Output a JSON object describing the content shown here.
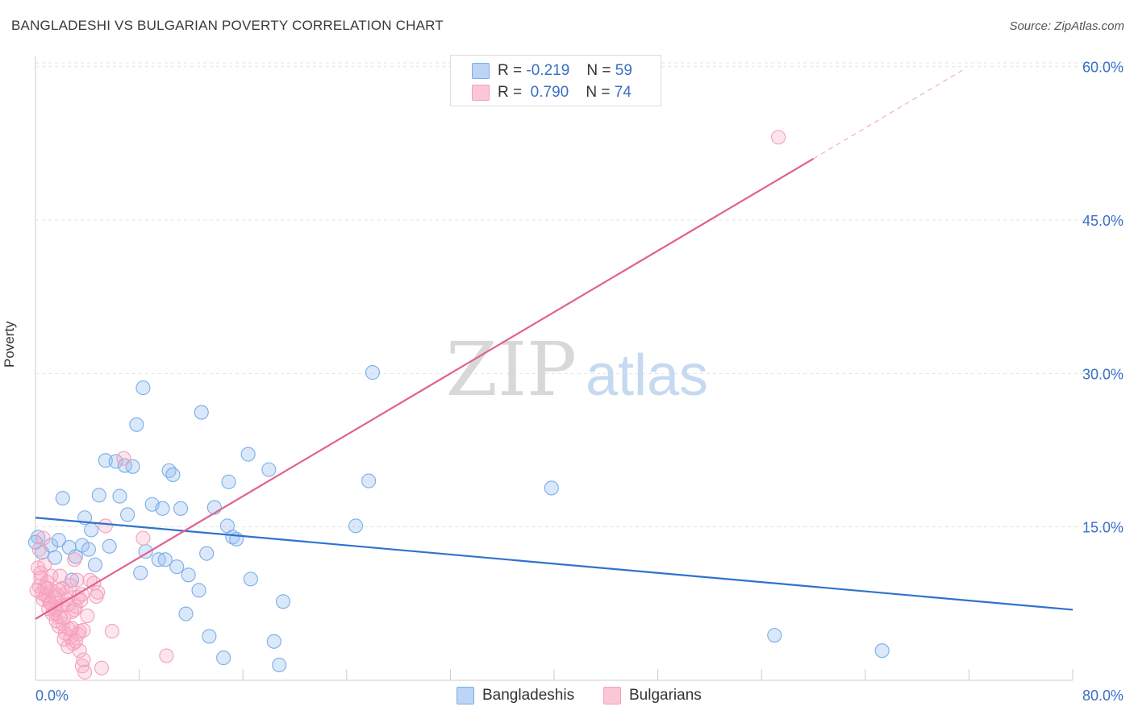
{
  "title": "BANGLADESHI VS BULGARIAN POVERTY CORRELATION CHART",
  "source": "Source: ZipAtlas.com",
  "watermark": {
    "zip": "ZIP",
    "atlas": "atlas"
  },
  "legend": {
    "rows": [
      {
        "r_label": "R =",
        "r_value": "-0.219",
        "n_label": "N =",
        "n_value": "59"
      },
      {
        "r_label": "R =",
        "r_value": "0.790",
        "n_label": "N =",
        "n_value": "74"
      }
    ]
  },
  "bottom_legend": [
    "Bangladeshis",
    "Bulgarians"
  ],
  "chart_data": {
    "type": "scatter",
    "title": "BANGLADESHI VS BULGARIAN POVERTY CORRELATION CHART",
    "xlabel": "",
    "ylabel": "Poverty",
    "xlim": [
      0,
      80
    ],
    "ylim": [
      0,
      61
    ],
    "x_tick_labels": [
      "0.0%",
      "80.0%"
    ],
    "y_tick_labels": [
      "15.0%",
      "30.0%",
      "45.0%",
      "60.0%"
    ],
    "y_ticks": [
      15,
      30,
      45,
      60
    ],
    "grid": true,
    "legend_position": "top-center",
    "series": [
      {
        "name": "Bangladeshis",
        "color": "#7aaee8",
        "line_color": "#2f72cf",
        "r": -0.219,
        "n": 59,
        "trend": {
          "x0": 0,
          "y0": 15.9,
          "x1": 80,
          "y1": 6.9
        },
        "points": [
          [
            0.2,
            14.0
          ],
          [
            0.5,
            12.5
          ],
          [
            1.2,
            13.2
          ],
          [
            1.5,
            12.0
          ],
          [
            1.8,
            13.7
          ],
          [
            2.1,
            17.8
          ],
          [
            2.6,
            13.0
          ],
          [
            2.8,
            9.8
          ],
          [
            3.1,
            12.1
          ],
          [
            3.6,
            13.2
          ],
          [
            3.8,
            15.9
          ],
          [
            4.1,
            12.8
          ],
          [
            4.3,
            14.7
          ],
          [
            4.6,
            11.3
          ],
          [
            4.9,
            18.1
          ],
          [
            5.4,
            21.5
          ],
          [
            5.7,
            13.1
          ],
          [
            6.2,
            21.4
          ],
          [
            6.5,
            18.0
          ],
          [
            6.9,
            21.0
          ],
          [
            7.1,
            16.2
          ],
          [
            7.5,
            20.9
          ],
          [
            7.8,
            25.0
          ],
          [
            8.1,
            10.5
          ],
          [
            8.3,
            28.6
          ],
          [
            8.5,
            12.6
          ],
          [
            9.0,
            17.2
          ],
          [
            9.5,
            11.8
          ],
          [
            9.8,
            16.8
          ],
          [
            10.0,
            11.8
          ],
          [
            10.3,
            20.5
          ],
          [
            10.6,
            20.1
          ],
          [
            10.9,
            11.1
          ],
          [
            11.2,
            16.8
          ],
          [
            11.6,
            6.5
          ],
          [
            11.8,
            10.3
          ],
          [
            12.6,
            8.8
          ],
          [
            12.8,
            26.2
          ],
          [
            13.2,
            12.4
          ],
          [
            13.4,
            4.3
          ],
          [
            13.8,
            16.9
          ],
          [
            14.5,
            2.2
          ],
          [
            14.9,
            19.4
          ],
          [
            14.8,
            15.1
          ],
          [
            15.2,
            14.0
          ],
          [
            15.5,
            13.8
          ],
          [
            16.4,
            22.1
          ],
          [
            16.6,
            9.9
          ],
          [
            18.0,
            20.6
          ],
          [
            18.4,
            3.8
          ],
          [
            18.8,
            1.5
          ],
          [
            19.1,
            7.7
          ],
          [
            24.7,
            15.1
          ],
          [
            25.7,
            19.5
          ],
          [
            26.0,
            30.1
          ],
          [
            39.8,
            18.8
          ],
          [
            57.0,
            4.4
          ],
          [
            65.3,
            2.9
          ],
          [
            0.0,
            13.5
          ]
        ]
      },
      {
        "name": "Bulgarians",
        "color": "#f4a0bb",
        "line_color": "#e2618c",
        "r": 0.79,
        "n": 74,
        "trend": {
          "x0": 0,
          "y0": 6.0,
          "x1": 60,
          "y1": 51.0
        },
        "trend_dashed": {
          "x0": 60,
          "y0": 51.0,
          "x1": 71.7,
          "y1": 59.8
        },
        "points": [
          [
            0.2,
            11.0
          ],
          [
            0.3,
            9.2
          ],
          [
            0.4,
            10.5
          ],
          [
            0.5,
            8.5
          ],
          [
            0.6,
            7.9
          ],
          [
            0.7,
            11.3
          ],
          [
            0.8,
            8.3
          ],
          [
            0.9,
            9.6
          ],
          [
            1.0,
            8.0
          ],
          [
            1.1,
            7.6
          ],
          [
            1.2,
            10.2
          ],
          [
            1.3,
            8.7
          ],
          [
            1.4,
            7.2
          ],
          [
            1.5,
            6.6
          ],
          [
            1.6,
            6.9
          ],
          [
            1.7,
            8.3
          ],
          [
            1.8,
            5.3
          ],
          [
            1.9,
            10.2
          ],
          [
            2.0,
            7.3
          ],
          [
            2.1,
            9.0
          ],
          [
            2.2,
            6.1
          ],
          [
            2.3,
            4.6
          ],
          [
            2.4,
            8.6
          ],
          [
            2.5,
            3.3
          ],
          [
            2.6,
            5.0
          ],
          [
            2.7,
            4.2
          ],
          [
            2.8,
            6.7
          ],
          [
            2.9,
            3.6
          ],
          [
            3.0,
            11.8
          ],
          [
            3.1,
            7.2
          ],
          [
            3.2,
            9.8
          ],
          [
            3.3,
            8.1
          ],
          [
            3.4,
            4.8
          ],
          [
            3.5,
            7.8
          ],
          [
            3.6,
            1.4
          ],
          [
            3.7,
            2.0
          ],
          [
            3.8,
            0.8
          ],
          [
            4.0,
            6.3
          ],
          [
            4.2,
            9.8
          ],
          [
            4.5,
            9.5
          ],
          [
            4.7,
            8.2
          ],
          [
            4.8,
            8.6
          ],
          [
            5.1,
            1.2
          ],
          [
            5.4,
            15.1
          ],
          [
            5.9,
            4.8
          ],
          [
            6.8,
            21.7
          ],
          [
            8.3,
            13.9
          ],
          [
            10.1,
            2.4
          ],
          [
            57.3,
            53.1
          ],
          [
            0.3,
            12.8
          ],
          [
            0.6,
            13.9
          ],
          [
            0.9,
            9.0
          ],
          [
            1.2,
            7.5
          ],
          [
            1.5,
            8.1
          ],
          [
            1.8,
            8.8
          ],
          [
            2.1,
            5.5
          ],
          [
            2.4,
            7.9
          ],
          [
            2.7,
            9.3
          ],
          [
            3.0,
            6.9
          ],
          [
            3.3,
            4.5
          ],
          [
            3.6,
            8.4
          ],
          [
            0.4,
            10.0
          ],
          [
            0.7,
            9.1
          ],
          [
            1.0,
            7.0
          ],
          [
            1.3,
            6.5
          ],
          [
            1.6,
            5.8
          ],
          [
            1.9,
            6.2
          ],
          [
            2.2,
            4.0
          ],
          [
            2.5,
            7.4
          ],
          [
            2.8,
            5.1
          ],
          [
            3.1,
            3.8
          ],
          [
            3.4,
            2.9
          ],
          [
            3.7,
            4.9
          ],
          [
            0.1,
            8.8
          ]
        ]
      }
    ]
  }
}
